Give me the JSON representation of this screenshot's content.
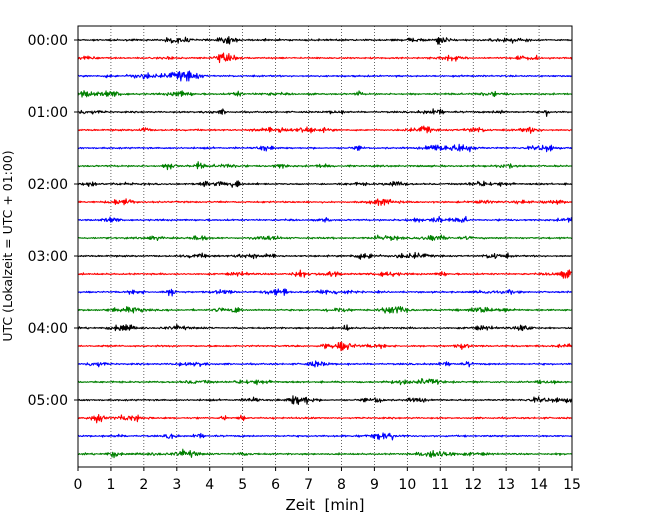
{
  "chart_data": {
    "type": "line",
    "title": "",
    "xlabel": "Zeit  [min]",
    "ylabel": "UTC (Lokalzeit = UTC + 01:00)",
    "xlim": [
      0,
      15
    ],
    "x_ticks": [
      0,
      1,
      2,
      3,
      4,
      5,
      6,
      7,
      8,
      9,
      10,
      11,
      12,
      13,
      14,
      15
    ],
    "y_tick_labels": [
      "00:00",
      "01:00",
      "02:00",
      "03:00",
      "04:00",
      "05:00"
    ],
    "grid": "vertical dotted lines at each minute",
    "trace_interval_minutes": 15,
    "trace_colors": [
      "#000000",
      "#ff0000",
      "#0000ff",
      "#008000"
    ],
    "series": [
      {
        "start": "00:00",
        "color": "#000000"
      },
      {
        "start": "00:15",
        "color": "#ff0000"
      },
      {
        "start": "00:30",
        "color": "#0000ff"
      },
      {
        "start": "00:45",
        "color": "#008000"
      },
      {
        "start": "01:00",
        "color": "#000000"
      },
      {
        "start": "01:15",
        "color": "#ff0000"
      },
      {
        "start": "01:30",
        "color": "#0000ff"
      },
      {
        "start": "01:45",
        "color": "#008000"
      },
      {
        "start": "02:00",
        "color": "#000000"
      },
      {
        "start": "02:15",
        "color": "#ff0000"
      },
      {
        "start": "02:30",
        "color": "#0000ff"
      },
      {
        "start": "02:45",
        "color": "#008000"
      },
      {
        "start": "03:00",
        "color": "#000000"
      },
      {
        "start": "03:15",
        "color": "#ff0000"
      },
      {
        "start": "03:30",
        "color": "#0000ff"
      },
      {
        "start": "03:45",
        "color": "#008000"
      },
      {
        "start": "04:00",
        "color": "#000000"
      },
      {
        "start": "04:15",
        "color": "#ff0000"
      },
      {
        "start": "04:30",
        "color": "#0000ff"
      },
      {
        "start": "04:45",
        "color": "#008000"
      },
      {
        "start": "05:00",
        "color": "#000000"
      },
      {
        "start": "05:15",
        "color": "#ff0000"
      },
      {
        "start": "05:30",
        "color": "#0000ff"
      },
      {
        "start": "05:45",
        "color": "#008000"
      }
    ]
  }
}
